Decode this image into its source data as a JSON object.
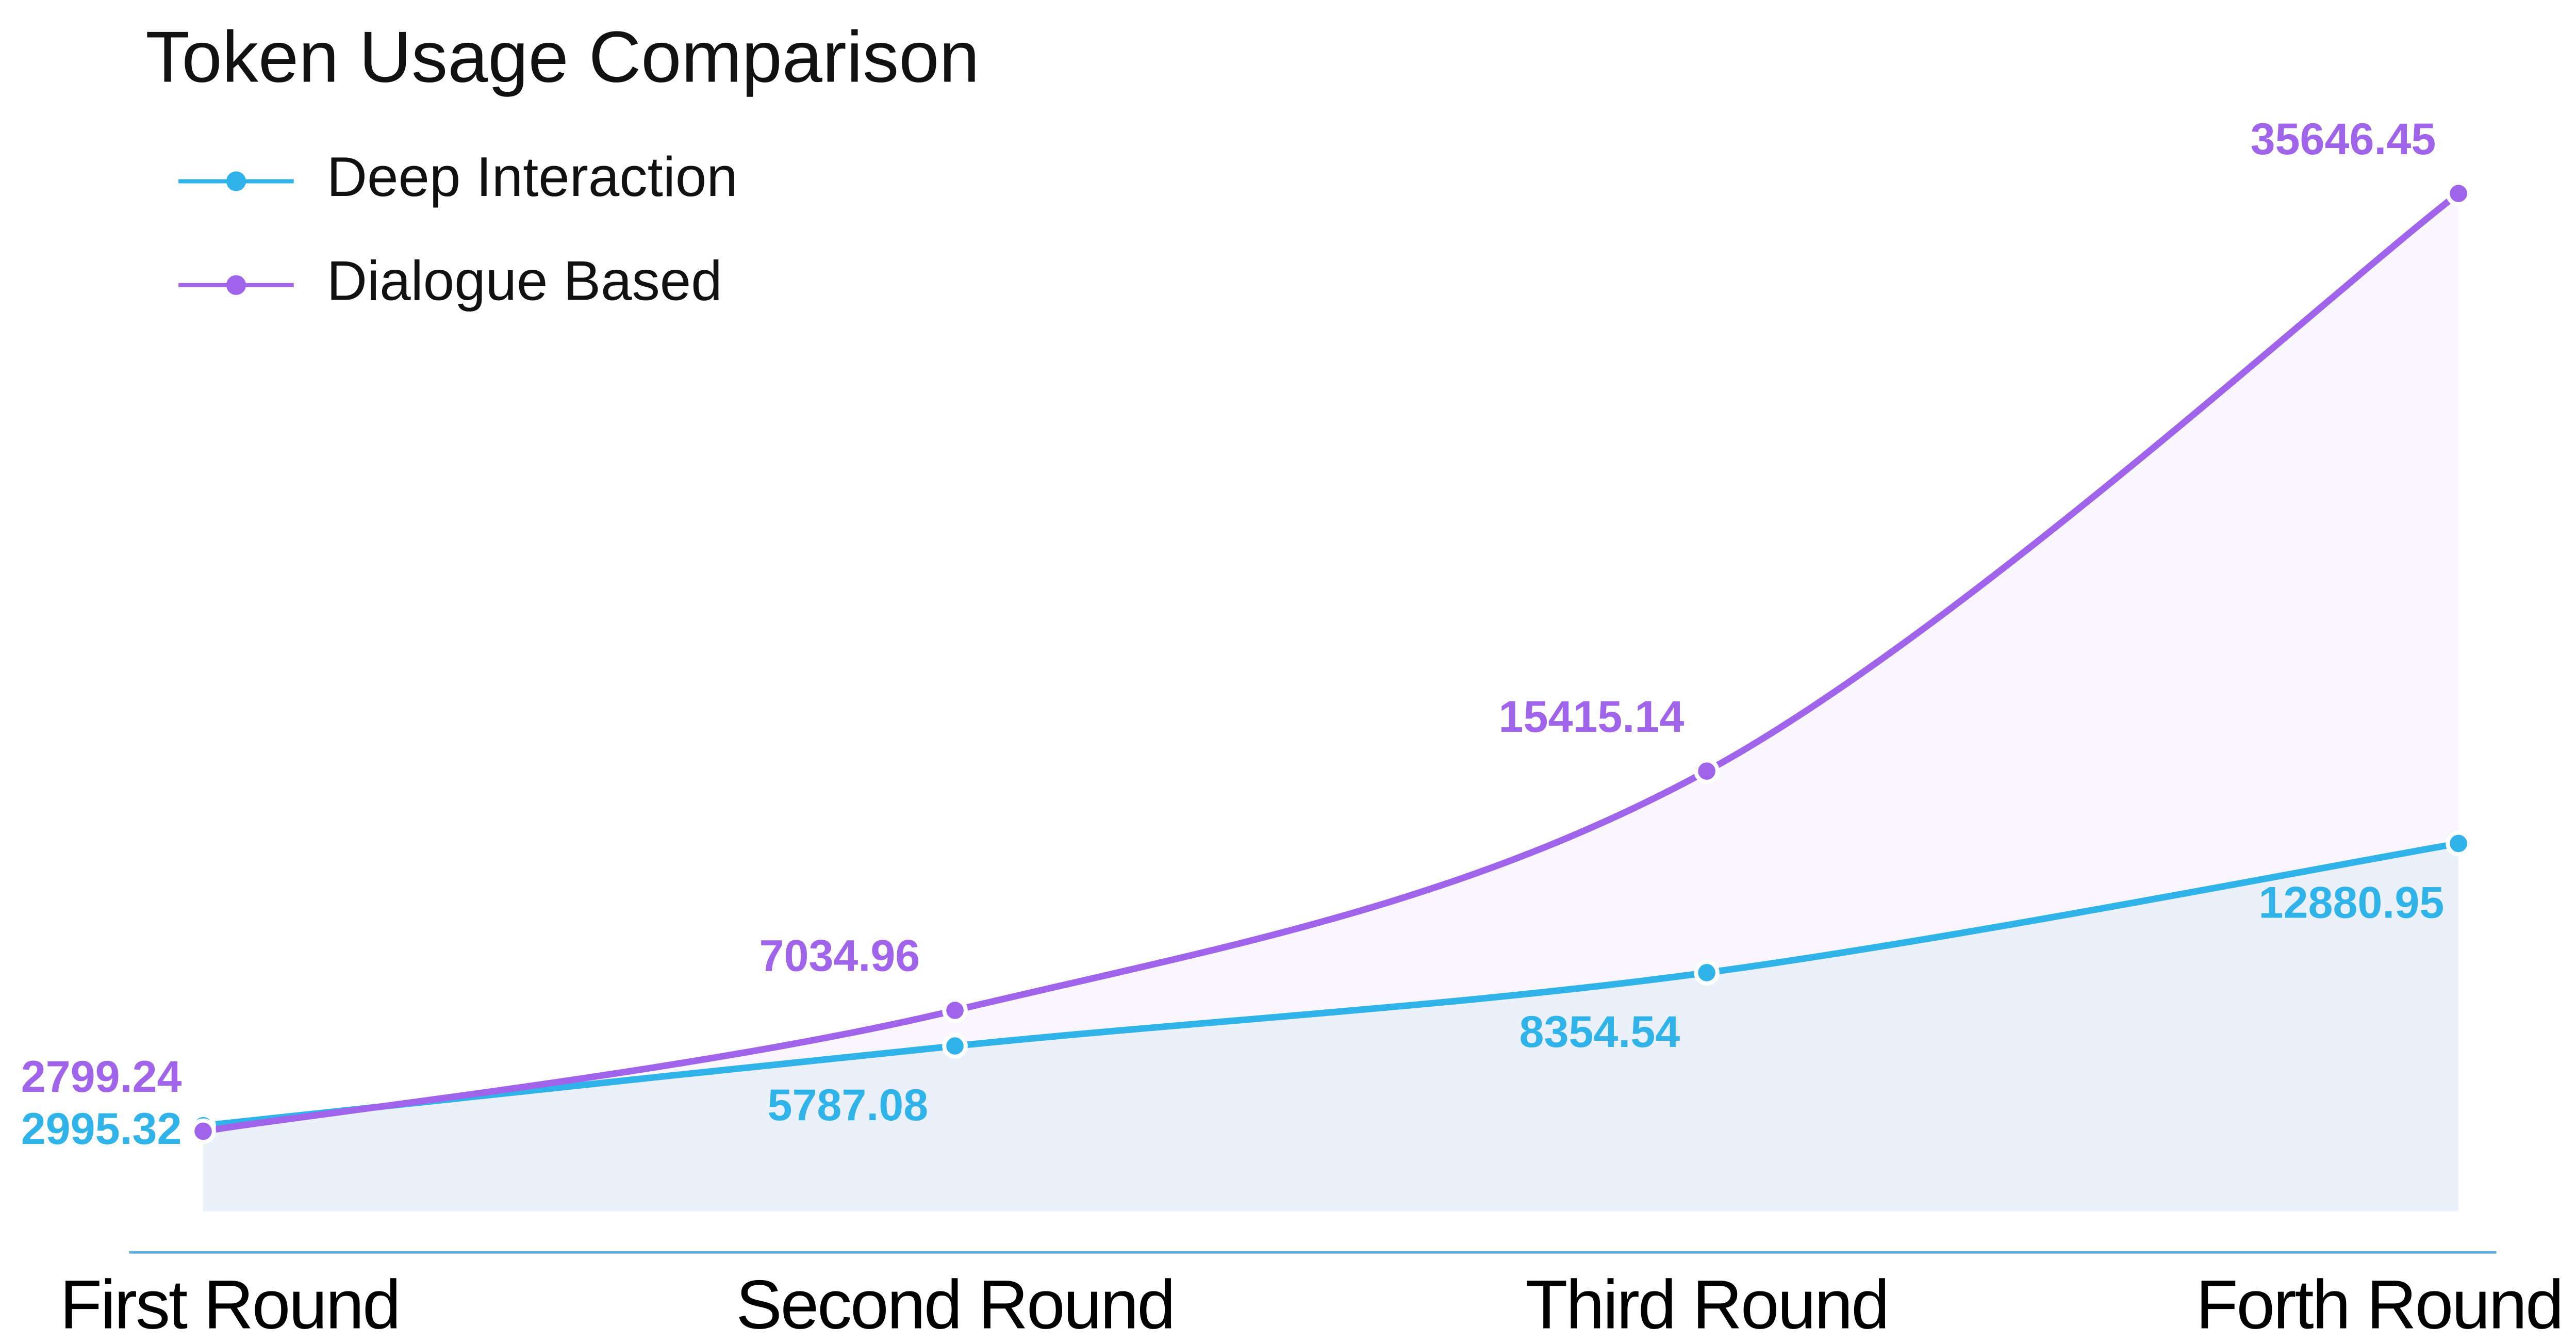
{
  "chart_data": {
    "type": "line",
    "title": "Token Usage Comparison",
    "categories": [
      "First Round",
      "Second Round",
      "Third Round",
      "Forth Round"
    ],
    "series": [
      {
        "name": "Deep Interaction",
        "color": "#2fb3e8",
        "values": [
          2995.32,
          5787.08,
          8354.54,
          12880.95
        ]
      },
      {
        "name": "Dialogue Based",
        "color": "#a064ea",
        "values": [
          2799.24,
          7034.96,
          15415.14,
          35646.45
        ]
      }
    ],
    "ylim": [
      0,
      40000
    ]
  }
}
